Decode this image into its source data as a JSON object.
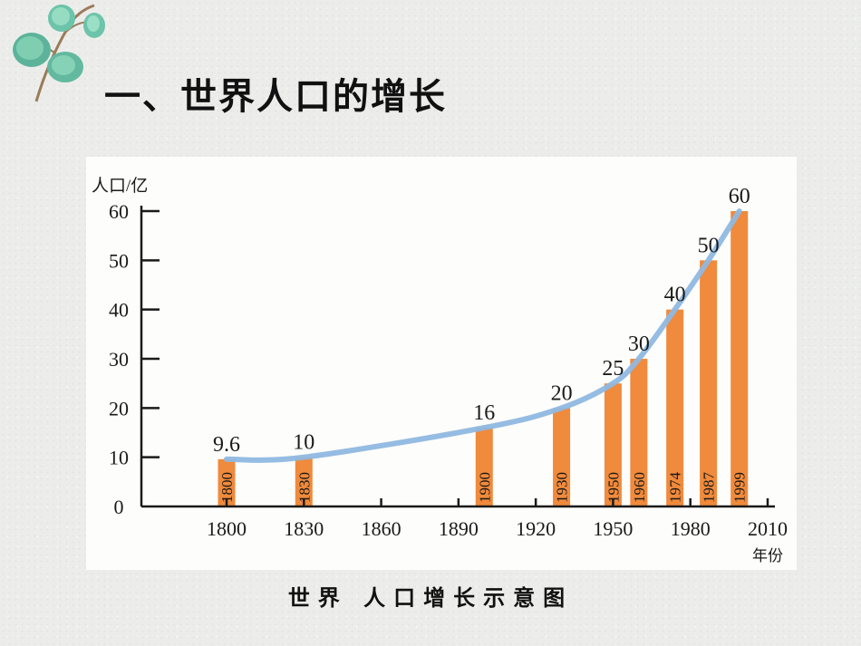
{
  "slide": {
    "title": "一、世界人口的增长",
    "caption": "世界 人口增长示意图"
  },
  "colors": {
    "bar": "#f08a3c",
    "curve": "#8fb8e0",
    "axis": "#1a1a1a",
    "leaf": "#6fc0a8"
  },
  "icons": {
    "decoration": "eucalyptus-leaf-icon"
  },
  "chart_data": {
    "type": "bar",
    "ylabel": "人口/亿",
    "xlabel": "年份",
    "ylim": [
      0,
      60
    ],
    "yticks": [
      0,
      10,
      20,
      30,
      40,
      50,
      60
    ],
    "xlim": [
      1800,
      2010
    ],
    "xticks": [
      1800,
      1830,
      1860,
      1890,
      1920,
      1950,
      1980,
      2010
    ],
    "grid": false,
    "bars": [
      {
        "year": 1800,
        "value": 9.6,
        "label": "9.6",
        "year_label": "1800"
      },
      {
        "year": 1830,
        "value": 10,
        "label": "10",
        "year_label": "1830"
      },
      {
        "year": 1900,
        "value": 16,
        "label": "16",
        "year_label": "1900"
      },
      {
        "year": 1930,
        "value": 20,
        "label": "20",
        "year_label": "1930"
      },
      {
        "year": 1950,
        "value": 25,
        "label": "25",
        "year_label": "1950"
      },
      {
        "year": 1960,
        "value": 30,
        "label": "30",
        "year_label": "1960"
      },
      {
        "year": 1974,
        "value": 40,
        "label": "40",
        "year_label": "1974"
      },
      {
        "year": 1987,
        "value": 50,
        "label": "50",
        "year_label": "1987"
      },
      {
        "year": 1999,
        "value": 60,
        "label": "60",
        "year_label": "1999"
      }
    ],
    "trend_curve": true
  }
}
